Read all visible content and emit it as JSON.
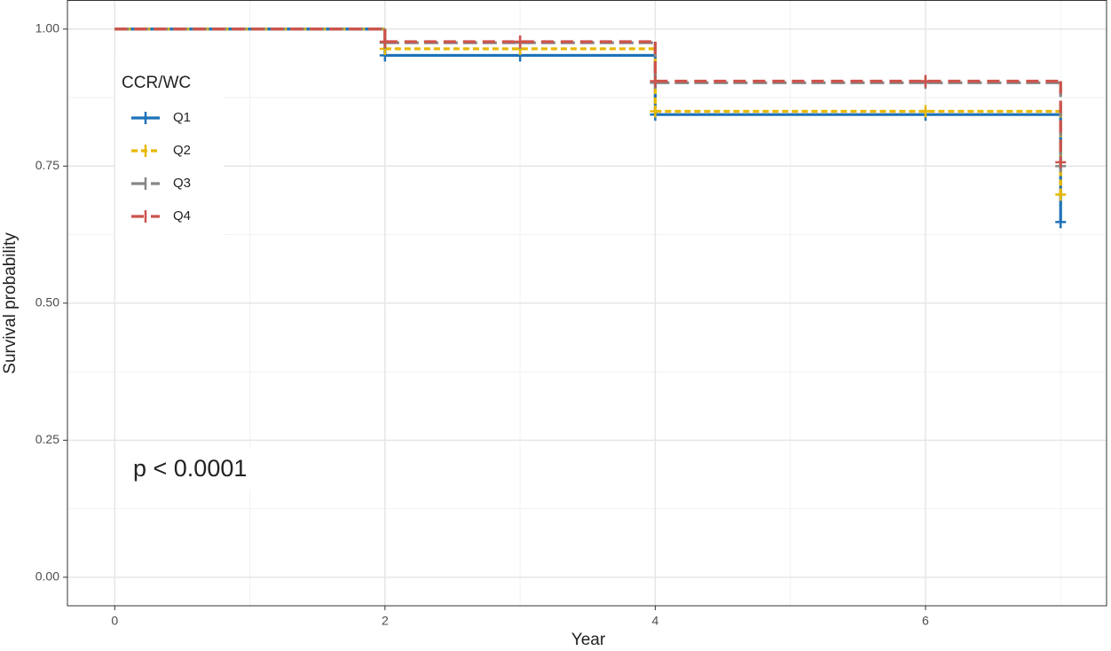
{
  "chart_data": {
    "type": "step",
    "x_label": "Year",
    "y_label": "Survival probability",
    "annotation": "p < 0.0001",
    "legend_title": "CCR/WC",
    "x": [
      0,
      2,
      4,
      7
    ],
    "censor_x": [
      2,
      3,
      4,
      6,
      7
    ],
    "series": [
      {
        "name": "Q1",
        "color": "#1f72b8",
        "dash": "solid",
        "values": [
          1.0,
          0.952,
          0.844,
          0.648
        ]
      },
      {
        "name": "Q2",
        "color": "#e8b800",
        "dash": "dotted",
        "values": [
          1.0,
          0.964,
          0.85,
          0.698
        ]
      },
      {
        "name": "Q3",
        "color": "#868686",
        "dash": "longdash",
        "values": [
          1.0,
          0.975,
          0.902,
          0.75
        ]
      },
      {
        "name": "Q4",
        "color": "#cd534c",
        "dash": "dashed",
        "values": [
          1.0,
          0.977,
          0.905,
          0.757
        ]
      }
    ],
    "xlim": [
      -0.35,
      7.34
    ],
    "ylim": [
      -0.052,
      1.053
    ],
    "xticks": [
      0,
      2,
      4,
      6
    ],
    "yticks": [
      {
        "value": 0,
        "label": "0.00"
      },
      {
        "value": 0.25,
        "label": "0.25"
      },
      {
        "value": 0.5,
        "label": "0.50"
      },
      {
        "value": 0.75,
        "label": "0.75"
      },
      {
        "value": 1,
        "label": "1.00"
      }
    ],
    "grid": true
  }
}
